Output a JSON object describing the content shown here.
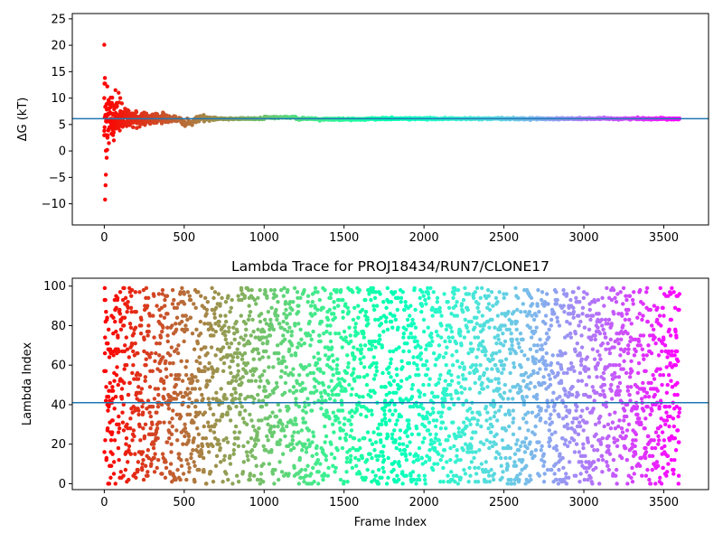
{
  "chart_data": [
    {
      "type": "scatter",
      "title": "",
      "xlabel": "",
      "ylabel": "ΔG (kT)",
      "xlim": [
        -200,
        3780
      ],
      "ylim": [
        -14,
        26
      ],
      "xticks": [
        0,
        500,
        1000,
        1500,
        2000,
        2500,
        3000,
        3500
      ],
      "yticks": [
        -10,
        -5,
        0,
        5,
        10,
        15,
        20,
        25
      ],
      "colormap": "rainbow (reversed: red at frame 0, violet at last frame)",
      "hline": {
        "y": 6.1,
        "color": "#1f77b4"
      },
      "n_frames": 3600,
      "description_of_series": "Running free-energy estimate per frame: large scatter early (outliers at 20, -9.2, -6.5, -4.5, -1.3), converging to ~6.1 kT after ~600 frames",
      "points": [
        [
          0,
          20.1
        ],
        [
          0,
          10.0
        ],
        [
          0,
          3.8
        ],
        [
          5,
          -9.2
        ],
        [
          8,
          -6.5
        ],
        [
          10,
          -4.5
        ],
        [
          15,
          -1.3
        ],
        [
          18,
          0.2
        ],
        [
          20,
          2.5
        ],
        [
          25,
          4.0
        ],
        [
          30,
          7.0
        ],
        [
          35,
          9.0
        ],
        [
          40,
          10.1
        ],
        [
          50,
          6.0
        ],
        [
          55,
          3.0
        ],
        [
          60,
          2.0
        ],
        [
          70,
          11.5
        ],
        [
          80,
          8.5
        ],
        [
          90,
          11.0
        ],
        [
          100,
          10.0
        ],
        [
          110,
          9.0
        ],
        [
          120,
          5.0
        ],
        [
          130,
          8.0
        ],
        [
          150,
          7.0
        ],
        [
          180,
          4.5
        ],
        [
          200,
          6.8
        ],
        [
          250,
          7.0
        ],
        [
          300,
          6.5
        ],
        [
          400,
          6.6
        ],
        [
          500,
          5.2
        ],
        [
          700,
          6.0
        ],
        [
          1000,
          6.3
        ],
        [
          1100,
          6.6
        ],
        [
          1500,
          5.9
        ],
        [
          1700,
          6.0
        ],
        [
          2000,
          6.2
        ],
        [
          2500,
          6.1
        ],
        [
          3000,
          6.1
        ],
        [
          3590,
          6.1
        ]
      ]
    },
    {
      "type": "scatter",
      "title": "Lambda Trace for PROJ18434/RUN7/CLONE17",
      "xlabel": "Frame Index",
      "ylabel": "Lambda Index",
      "xlim": [
        -200,
        3780
      ],
      "ylim": [
        -3,
        104
      ],
      "xticks": [
        0,
        500,
        1000,
        1500,
        2000,
        2500,
        3000,
        3500
      ],
      "yticks": [
        0,
        20,
        40,
        60,
        80,
        100
      ],
      "colormap": "rainbow (reversed: red at frame 0, violet at last frame)",
      "hline": {
        "y": 41,
        "color": "#1f77b4"
      },
      "n_frames": 3600,
      "lambda_range": [
        0,
        99
      ],
      "description_of_series": "One lambda index (0-99) per frame, scattered uniformly across the full range, colored by frame index"
    }
  ],
  "colors": {
    "hline": "#1f77b4",
    "axes": "#000000",
    "background": "#ffffff"
  }
}
